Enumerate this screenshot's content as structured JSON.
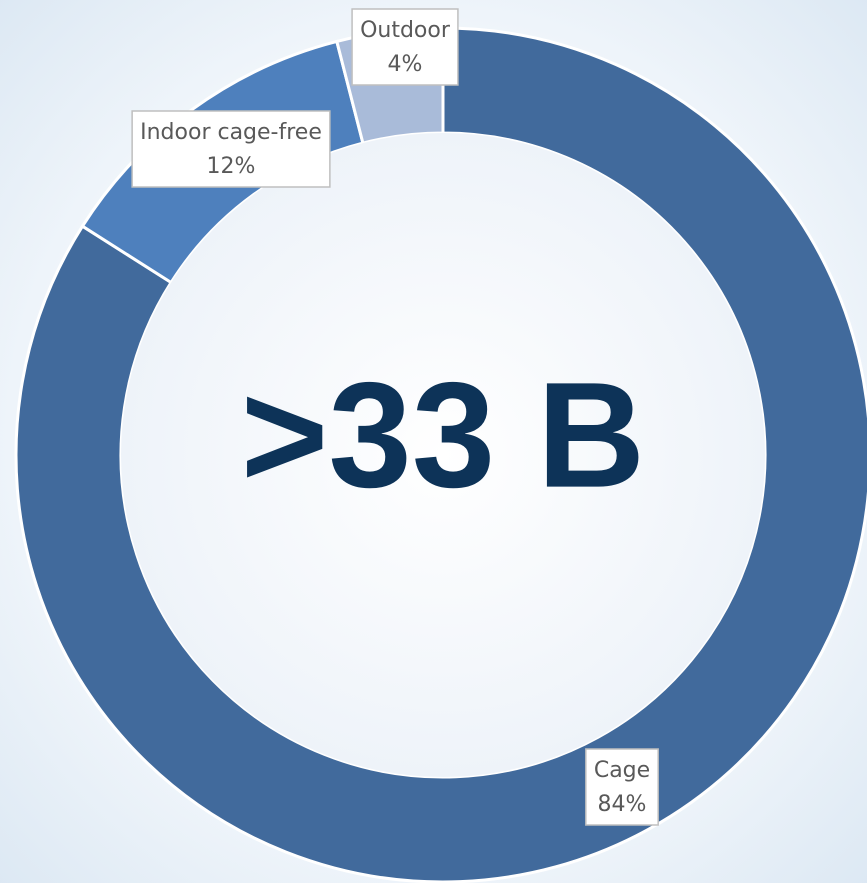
{
  "chart_data": {
    "type": "donut",
    "center_label": ">33 B",
    "categories": [
      "Cage",
      "Indoor cage-free",
      "Outdoor"
    ],
    "values": [
      84,
      12,
      4
    ],
    "value_labels": [
      "84%",
      "12%",
      "4%"
    ],
    "colors": [
      "#416a9c",
      "#4e80bd",
      "#a9bbd9"
    ]
  }
}
